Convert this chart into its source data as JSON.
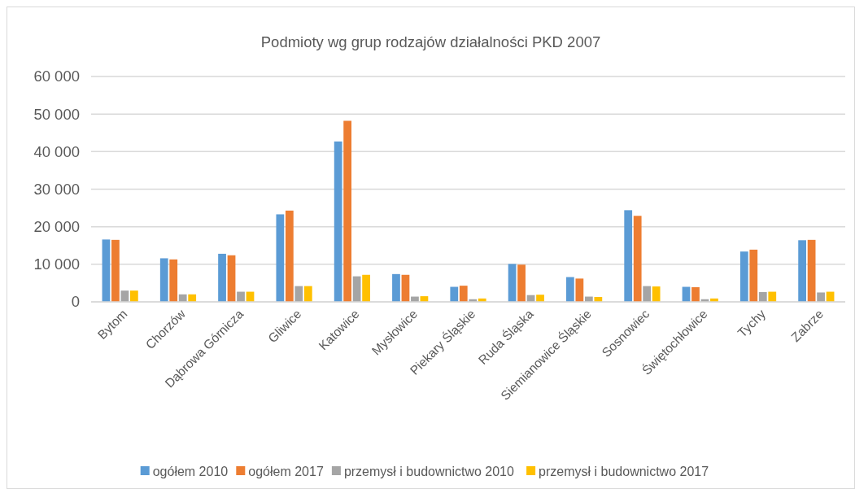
{
  "chart_data": {
    "type": "bar",
    "title": "Podmioty wg grup rodzajów działalności PKD 2007",
    "categories": [
      "Bytom",
      "Chorzów",
      "Dąbrowa Górnicza",
      "Gliwice",
      "Katowice",
      "Mysłowice",
      "Piekary Śląskie",
      "Ruda Śląska",
      "Siemianowice Śląskie",
      "Sosnowiec",
      "Świętochłowice",
      "Tychy",
      "Zabrze"
    ],
    "series": [
      {
        "name": "ogółem 2010",
        "color": "#5b9bd5",
        "values": [
          16600,
          11600,
          12800,
          23300,
          42700,
          7400,
          4000,
          10100,
          6600,
          24400,
          4000,
          13400,
          16400
        ]
      },
      {
        "name": "ogółem 2017",
        "color": "#ed7d31",
        "values": [
          16500,
          11300,
          12400,
          24300,
          48200,
          7200,
          4300,
          9900,
          6200,
          22900,
          3900,
          13900,
          16500
        ]
      },
      {
        "name": "przemysł i budownictwo 2010",
        "color": "#a5a5a5",
        "values": [
          3000,
          2000,
          2700,
          4200,
          6800,
          1400,
          700,
          1800,
          1400,
          4200,
          700,
          2600,
          2500
        ]
      },
      {
        "name": "przemysł i budownictwo 2017",
        "color": "#ffc000",
        "values": [
          3000,
          2000,
          2700,
          4200,
          7200,
          1500,
          900,
          1900,
          1300,
          4100,
          900,
          2700,
          2700
        ]
      }
    ],
    "ylim": [
      0,
      60000
    ],
    "yticks": [
      {
        "value": 0,
        "label": "0"
      },
      {
        "value": 10000,
        "label": "10 000"
      },
      {
        "value": 20000,
        "label": "20 000"
      },
      {
        "value": 30000,
        "label": "30 000"
      },
      {
        "value": 40000,
        "label": "40 000"
      },
      {
        "value": 50000,
        "label": "50 000"
      },
      {
        "value": 60000,
        "label": "60 000"
      }
    ],
    "grid": "y",
    "legend": "bottom"
  }
}
